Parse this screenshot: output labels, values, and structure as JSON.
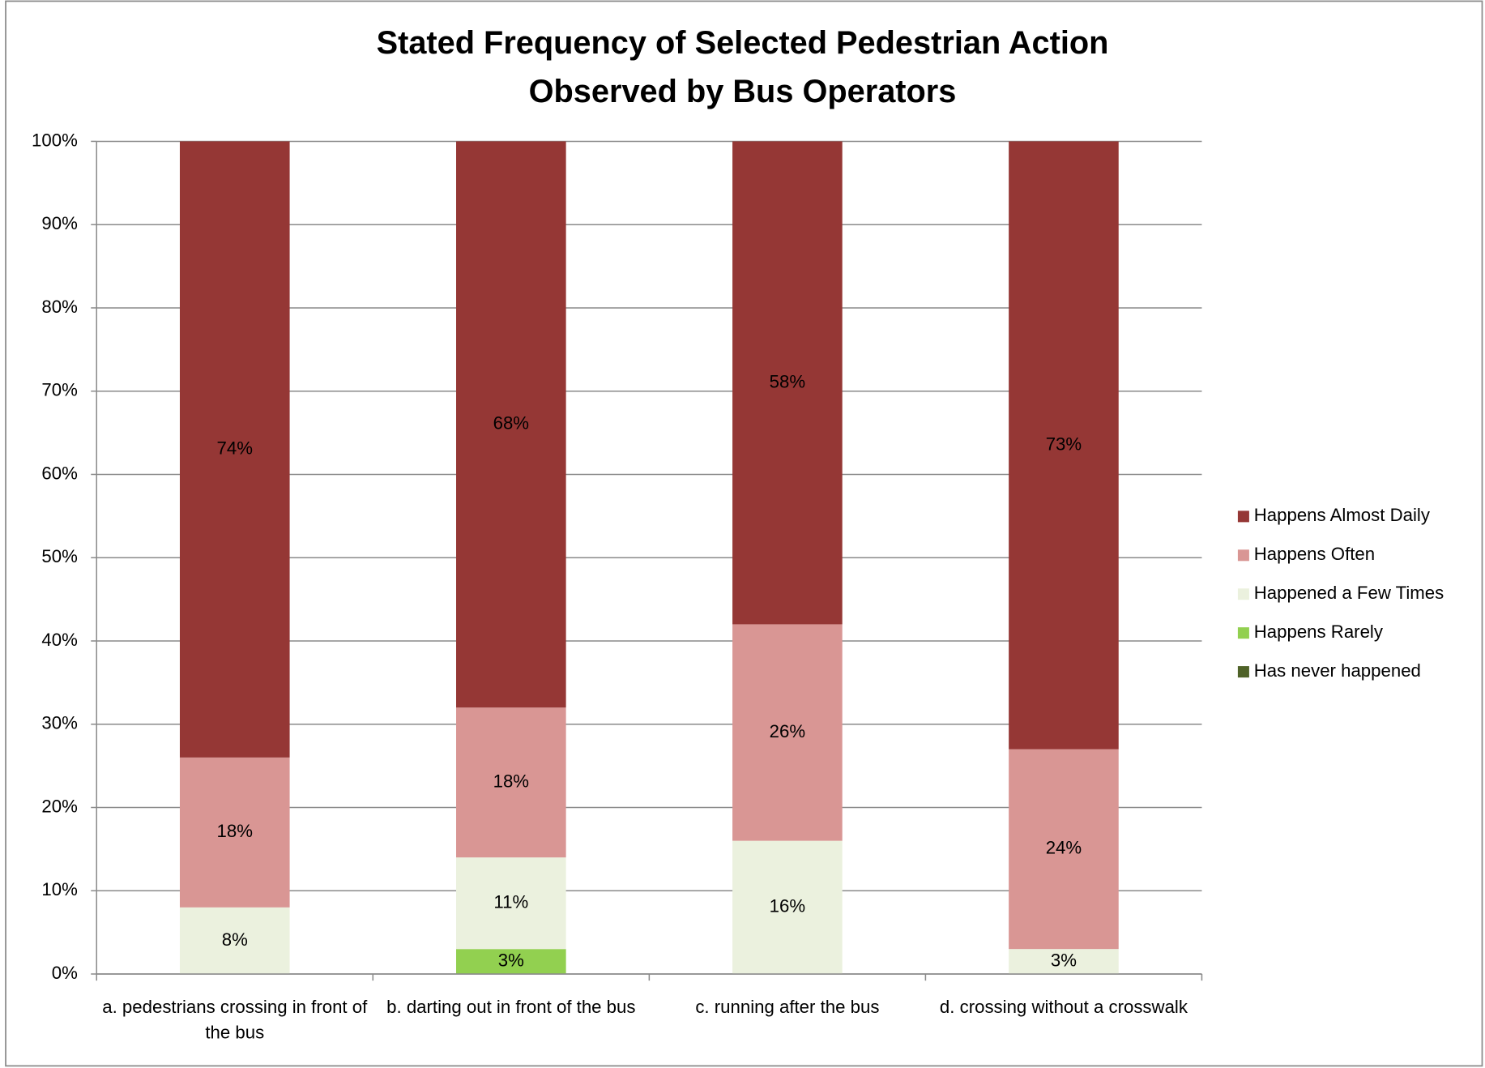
{
  "chart_data": {
    "type": "stacked_bar",
    "title": "Stated Frequency of Selected Pedestrian Action Observed by Bus Operators",
    "categories": [
      "a. pedestrians crossing in front of the bus",
      "b. darting out in front of the bus",
      "c. running after the bus",
      "d. crossing without a crosswalk"
    ],
    "series": [
      {
        "name": "Happens Almost Daily",
        "color": "#953735",
        "values": [
          74,
          68,
          58,
          73
        ],
        "value_labels": [
          "74%",
          "68%",
          "58%",
          "73%"
        ]
      },
      {
        "name": "Happens Often",
        "color": "#d99694",
        "values": [
          18,
          18,
          26,
          24
        ],
        "value_labels": [
          "18%",
          "18%",
          "26%",
          "24%"
        ]
      },
      {
        "name": "Happened a Few Times",
        "color": "#ebf1de",
        "values": [
          8,
          11,
          16,
          3
        ],
        "value_labels": [
          "8%",
          "11%",
          "16%",
          "3%"
        ]
      },
      {
        "name": "Happens Rarely",
        "color": "#92d050",
        "values": [
          0,
          3,
          0,
          0
        ],
        "value_labels": [
          null,
          "3%",
          null,
          null
        ]
      },
      {
        "name": "Has never happened",
        "color": "#4f6228",
        "values": [
          0,
          0,
          0,
          0
        ],
        "value_labels": [
          null,
          null,
          null,
          null
        ]
      }
    ],
    "ylim": [
      0,
      100
    ],
    "yticks": [
      {
        "value": 0,
        "label": "0%"
      },
      {
        "value": 10,
        "label": "10%"
      },
      {
        "value": 20,
        "label": "20%"
      },
      {
        "value": 30,
        "label": "30%"
      },
      {
        "value": 40,
        "label": "40%"
      },
      {
        "value": 50,
        "label": "50%"
      },
      {
        "value": 60,
        "label": "60%"
      },
      {
        "value": 70,
        "label": "70%"
      },
      {
        "value": 80,
        "label": "80%"
      },
      {
        "value": 90,
        "label": "90%"
      },
      {
        "value": 100,
        "label": "100%"
      }
    ],
    "grid": true,
    "legend": "right"
  }
}
